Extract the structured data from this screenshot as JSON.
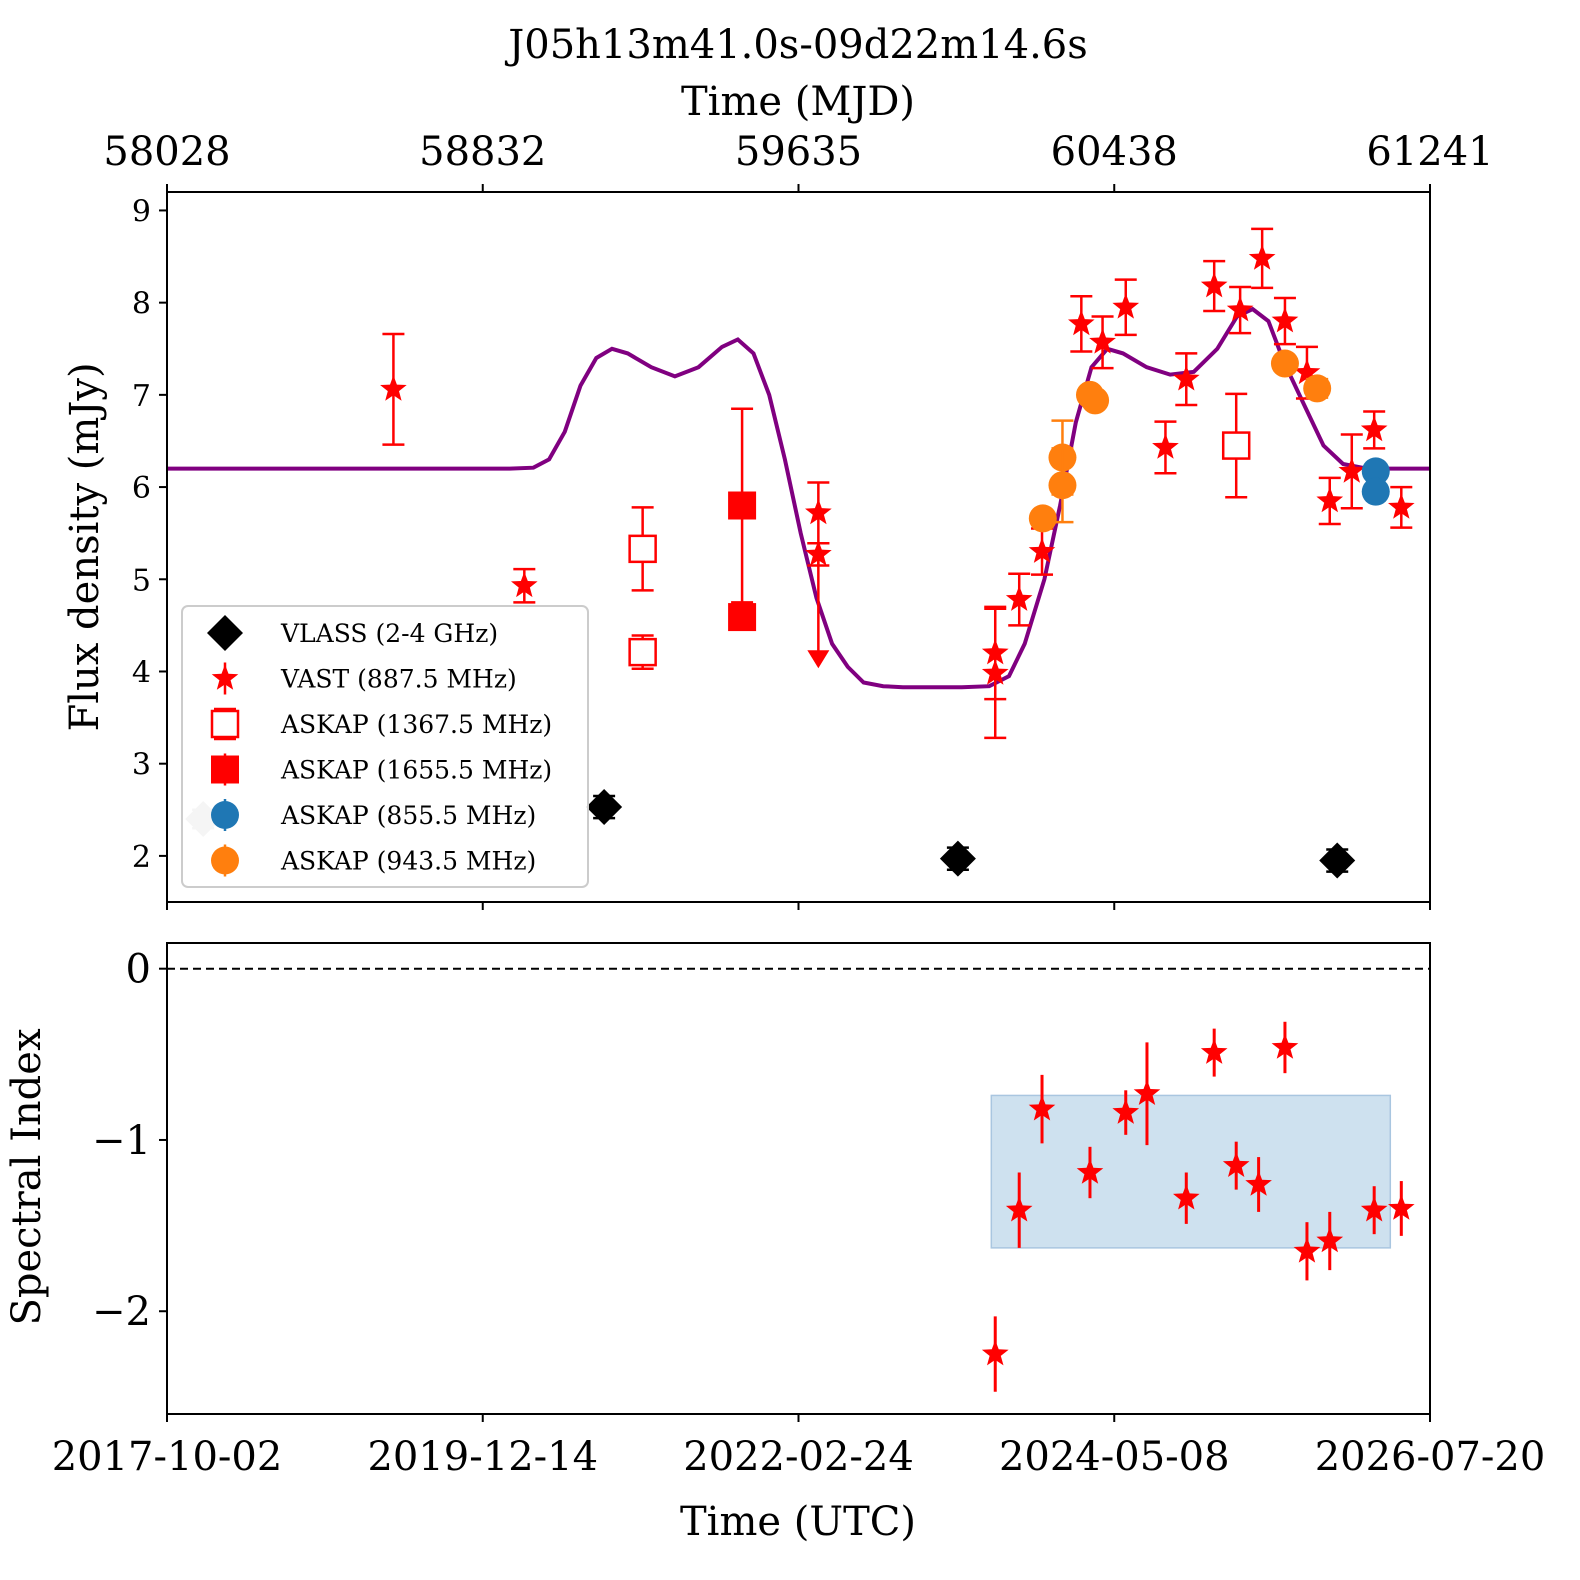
{
  "title": "J05h13m41.0s-09d22m14.6s",
  "chart_data": [
    {
      "name": "flux-panel",
      "type": "scatter",
      "ylabel": "Flux density (mJy)",
      "ylim": [
        1.5,
        9.2
      ],
      "yticks": [
        2,
        3,
        4,
        5,
        6,
        7,
        8,
        9
      ],
      "top_axis": {
        "label": "Time (MJD)",
        "range": [
          58028,
          61241
        ],
        "ticks": [
          "58028",
          "58832",
          "59635",
          "60438",
          "61241"
        ]
      },
      "legend": {
        "position": "lower-left",
        "entries": [
          {
            "label": "VLASS (2-4 GHz)",
            "marker": "diamond",
            "color": "#000000"
          },
          {
            "label": "VAST (887.5 MHz)",
            "marker": "star",
            "color": "#ff0000"
          },
          {
            "label": "ASKAP (1367.5 MHz)",
            "marker": "open-square",
            "color": "#ff0000"
          },
          {
            "label": "ASKAP (1655.5 MHz)",
            "marker": "square",
            "color": "#ff0000"
          },
          {
            "label": "ASKAP (855.5 MHz)",
            "marker": "circle",
            "color": "#1f77b4"
          },
          {
            "label": "ASKAP (943.5 MHz)",
            "marker": "circle",
            "color": "#ff7f0e"
          }
        ]
      },
      "series": [
        {
          "name": "VLASS (2-4 GHz)",
          "marker": "diamond",
          "color": "#000000",
          "points": [
            [
              59140,
              2.53,
              0.12
            ],
            [
              60040,
              1.97,
              0.12
            ],
            [
              61005,
              1.95,
              0.12
            ]
          ]
        },
        {
          "name": "VLASS-grey",
          "marker": "diamond",
          "color": "#cccccc",
          "points": [
            [
              58120,
              2.4,
              0.1
            ]
          ]
        },
        {
          "name": "VAST (887.5 MHz)",
          "marker": "star",
          "color": "#ff0000",
          "points": [
            [
              58604,
              7.06,
              0.6
            ],
            [
              58937,
              4.93,
              0.18
            ],
            [
              59685,
              5.72,
              0.33
            ],
            [
              59685,
              5.27,
              0.12
            ],
            [
              60135,
              4.2,
              0.5
            ],
            [
              60135,
              3.98,
              0.7
            ],
            [
              60196,
              4.78,
              0.28
            ],
            [
              60254,
              5.3,
              0.25
            ],
            [
              60354,
              7.77,
              0.3
            ],
            [
              60408,
              7.57,
              0.28
            ],
            [
              60467,
              7.95,
              0.3
            ],
            [
              60568,
              6.43,
              0.28
            ],
            [
              60621,
              7.17,
              0.28
            ],
            [
              60692,
              8.18,
              0.27
            ],
            [
              60758,
              7.92,
              0.25
            ],
            [
              60814,
              8.48,
              0.32
            ],
            [
              60872,
              7.8,
              0.25
            ],
            [
              60928,
              7.24,
              0.28
            ],
            [
              60986,
              5.85,
              0.25
            ],
            [
              61042,
              6.17,
              0.4
            ],
            [
              61099,
              6.62,
              0.2
            ],
            [
              61168,
              5.78,
              0.22
            ]
          ]
        },
        {
          "name": "VAST upper limit",
          "marker": "arrow-down",
          "color": "#ff0000",
          "points": [
            [
              59685,
              4.1
            ]
          ]
        },
        {
          "name": "ASKAP (1367.5 MHz)",
          "marker": "open-square",
          "color": "#ff0000",
          "points": [
            [
              59238,
              5.33,
              0.45
            ],
            [
              59238,
              4.21,
              0.18
            ],
            [
              60748,
              6.45,
              0.56
            ]
          ]
        },
        {
          "name": "ASKAP (1655.5 MHz)",
          "marker": "square",
          "color": "#ff0000",
          "points": [
            [
              59491,
              5.8,
              1.05
            ],
            [
              59491,
              4.59,
              0.12
            ]
          ]
        },
        {
          "name": "ASKAP (855.5 MHz)",
          "marker": "circle",
          "color": "#1f77b4",
          "points": [
            [
              61103,
              6.17,
              0.05
            ],
            [
              61103,
              5.95,
              0.05
            ]
          ]
        },
        {
          "name": "ASKAP (943.5 MHz)",
          "marker": "circle",
          "color": "#ff7f0e",
          "points": [
            [
              60256,
              5.66,
              0.05
            ],
            [
              60306,
              6.32,
              0.4
            ],
            [
              60306,
              6.02,
              0.4
            ],
            [
              60376,
              7.0,
              0.05
            ],
            [
              60389,
              6.94,
              0.05
            ],
            [
              60872,
              7.34,
              0.05
            ],
            [
              60954,
              7.07,
              0.1
            ]
          ]
        }
      ],
      "model_curve": {
        "color": "#800080",
        "points": [
          [
            58028,
            6.2
          ],
          [
            58900,
            6.2
          ],
          [
            58960,
            6.21
          ],
          [
            59000,
            6.3
          ],
          [
            59040,
            6.6
          ],
          [
            59080,
            7.1
          ],
          [
            59120,
            7.4
          ],
          [
            59160,
            7.5
          ],
          [
            59200,
            7.45
          ],
          [
            59260,
            7.3
          ],
          [
            59320,
            7.2
          ],
          [
            59380,
            7.3
          ],
          [
            59440,
            7.52
          ],
          [
            59480,
            7.6
          ],
          [
            59520,
            7.45
          ],
          [
            59560,
            7.0
          ],
          [
            59600,
            6.3
          ],
          [
            59640,
            5.5
          ],
          [
            59680,
            4.8
          ],
          [
            59720,
            4.3
          ],
          [
            59760,
            4.05
          ],
          [
            59800,
            3.88
          ],
          [
            59850,
            3.84
          ],
          [
            59900,
            3.83
          ],
          [
            60050,
            3.83
          ],
          [
            60120,
            3.84
          ],
          [
            60170,
            3.95
          ],
          [
            60210,
            4.3
          ],
          [
            60260,
            5.0
          ],
          [
            60300,
            5.8
          ],
          [
            60340,
            6.7
          ],
          [
            60380,
            7.3
          ],
          [
            60420,
            7.5
          ],
          [
            60460,
            7.45
          ],
          [
            60520,
            7.3
          ],
          [
            60580,
            7.22
          ],
          [
            60640,
            7.25
          ],
          [
            60700,
            7.5
          ],
          [
            60750,
            7.85
          ],
          [
            60790,
            7.93
          ],
          [
            60830,
            7.8
          ],
          [
            60870,
            7.35
          ],
          [
            60920,
            6.9
          ],
          [
            60970,
            6.45
          ],
          [
            61020,
            6.25
          ],
          [
            61080,
            6.2
          ],
          [
            61241,
            6.2
          ]
        ]
      }
    },
    {
      "name": "spectral-index-panel",
      "type": "scatter",
      "xlabel": "Time (UTC)",
      "ylabel": "Spectral Index",
      "ylim": [
        -2.6,
        0.15
      ],
      "yticks": [
        -2,
        -1,
        0
      ],
      "ytick_labels": [
        "−2",
        "−1",
        "0"
      ],
      "xticks": [
        "2017-10-02",
        "2019-12-14",
        "2022-02-24",
        "2024-05-08",
        "2026-07-20"
      ],
      "reference_line": {
        "y": 0,
        "style": "dashed"
      },
      "shaded_band": {
        "x": [
          60125,
          61140
        ],
        "y": [
          -1.63,
          -0.74
        ],
        "color": "#c6dcec"
      },
      "series": [
        {
          "name": "Spectral Index",
          "marker": "star",
          "color": "#ff0000",
          "points": [
            [
              60135,
              -2.25,
              0.22
            ],
            [
              60196,
              -1.41,
              0.22
            ],
            [
              60254,
              -0.82,
              0.2
            ],
            [
              60376,
              -1.19,
              0.15
            ],
            [
              60467,
              -0.84,
              0.13
            ],
            [
              60521,
              -0.73,
              0.3
            ],
            [
              60621,
              -1.34,
              0.15
            ],
            [
              60692,
              -0.49,
              0.14
            ],
            [
              60748,
              -1.15,
              0.14
            ],
            [
              60805,
              -1.26,
              0.16
            ],
            [
              60872,
              -0.46,
              0.15
            ],
            [
              60928,
              -1.65,
              0.17
            ],
            [
              60986,
              -1.59,
              0.17
            ],
            [
              61099,
              -1.41,
              0.14
            ],
            [
              61168,
              -1.4,
              0.16
            ]
          ]
        }
      ]
    }
  ]
}
